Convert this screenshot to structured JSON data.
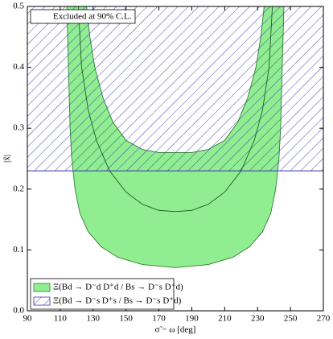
{
  "chart_data": {
    "type": "region",
    "xlabel": "σ̃ − ω [deg]",
    "ylabel": "|x̃|",
    "annotation": "Excluded at 90% C.L.",
    "xlim": [
      90,
      270
    ],
    "xticks": [
      90,
      110,
      130,
      150,
      170,
      190,
      210,
      230,
      250,
      270
    ],
    "ylim": [
      0,
      0.5
    ],
    "yticks": [
      {
        "value": 0,
        "label": "0.0"
      },
      0.1,
      0.2,
      0.3,
      0.4,
      0.5
    ],
    "series": [
      {
        "name": "Ξ(Bd → D⁻d D⁺d / Bs → D⁻s D⁺d)",
        "color": "#90ee90",
        "edge": "#2e7d32",
        "fill": "solid",
        "x": [
          114,
          115,
          116,
          117,
          119,
          122,
          127,
          135,
          145,
          160,
          180,
          200,
          215,
          225,
          233,
          238,
          241,
          243,
          244,
          245,
          246,
          234,
          232,
          229,
          224,
          218,
          210,
          200,
          190,
          180,
          170,
          160,
          150,
          142,
          136,
          131,
          128,
          126
        ],
        "values": [
          0.5,
          0.4,
          0.3,
          0.25,
          0.2,
          0.16,
          0.13,
          0.105,
          0.088,
          0.076,
          0.071,
          0.076,
          0.088,
          0.105,
          0.13,
          0.16,
          0.2,
          0.25,
          0.3,
          0.4,
          0.5,
          0.5,
          0.45,
          0.4,
          0.35,
          0.31,
          0.28,
          0.265,
          0.26,
          0.26,
          0.26,
          0.265,
          0.28,
          0.31,
          0.35,
          0.4,
          0.45,
          0.5
        ]
      },
      {
        "color": "#1b5e20",
        "fill": "none",
        "x": [
          121,
          123,
          127,
          132,
          140,
          150,
          160,
          170,
          180,
          190,
          200,
          210,
          220,
          228,
          233,
          237,
          239
        ],
        "values": [
          0.5,
          0.4,
          0.33,
          0.28,
          0.23,
          0.195,
          0.175,
          0.165,
          0.163,
          0.165,
          0.175,
          0.195,
          0.23,
          0.28,
          0.33,
          0.4,
          0.5
        ]
      },
      {
        "name": "Ξ(Bd → D⁻s D⁺s / Bs → D⁻s D⁺d)",
        "color": "#3333aa",
        "fill": "hatch",
        "x": [
          90,
          270,
          270,
          90
        ],
        "values": [
          0.23,
          0.23,
          0.5,
          0.5
        ]
      }
    ]
  }
}
